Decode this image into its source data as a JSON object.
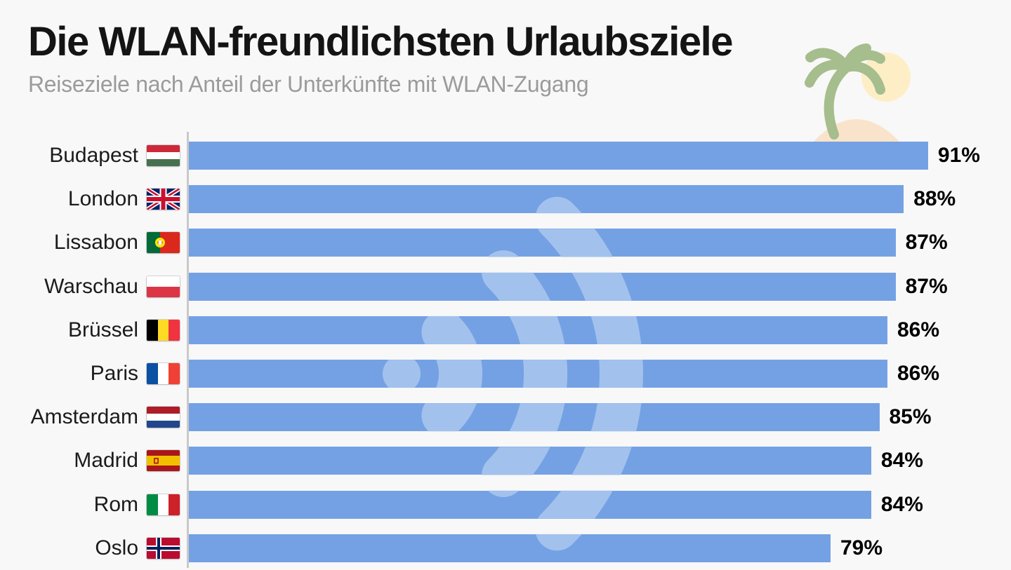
{
  "header": {
    "title": "Die WLAN-freundlichsten Urlaubsziele",
    "subtitle": "Reiseziele nach Anteil der Unterkünfte mit WLAN-Zugang"
  },
  "icons": {
    "decoration": "palm-island-with-sun",
    "watermark": "wifi-signal"
  },
  "colors": {
    "background": "#f8f8f8",
    "bar": "#74a1e4",
    "wifi_watermark": "#a2c2ed",
    "axis_line": "#c9c9c9",
    "title_text": "#141414",
    "subtitle_text": "#9b9b9b",
    "value_text": "#000000",
    "palm_green": "#a6bd8d",
    "sun_yellow": "#fdeec6",
    "island_peach": "#fae3cb"
  },
  "chart_data": {
    "type": "bar",
    "orientation": "horizontal",
    "title": "Die WLAN-freundlichsten Urlaubsziele",
    "subtitle": "Reiseziele nach Anteil der Unterkünfte mit WLAN-Zugang",
    "unit": "%",
    "xlim": [
      0,
      100
    ],
    "grid": false,
    "legend": "none",
    "value_labels": "end-of-bar-bold",
    "categories": [
      "Budapest",
      "London",
      "Lissabon",
      "Warschau",
      "Brüssel",
      "Paris",
      "Amsterdam",
      "Madrid",
      "Rom",
      "Oslo"
    ],
    "values": [
      91,
      88,
      87,
      87,
      86,
      86,
      85,
      84,
      84,
      79
    ],
    "value_labels_text": [
      "91%",
      "88%",
      "87%",
      "87%",
      "86%",
      "86%",
      "85%",
      "84%",
      "84%",
      "79%"
    ],
    "flags": [
      "hungary",
      "uk",
      "portugal",
      "poland",
      "belgium",
      "france",
      "netherlands",
      "spain",
      "italy",
      "norway"
    ]
  }
}
